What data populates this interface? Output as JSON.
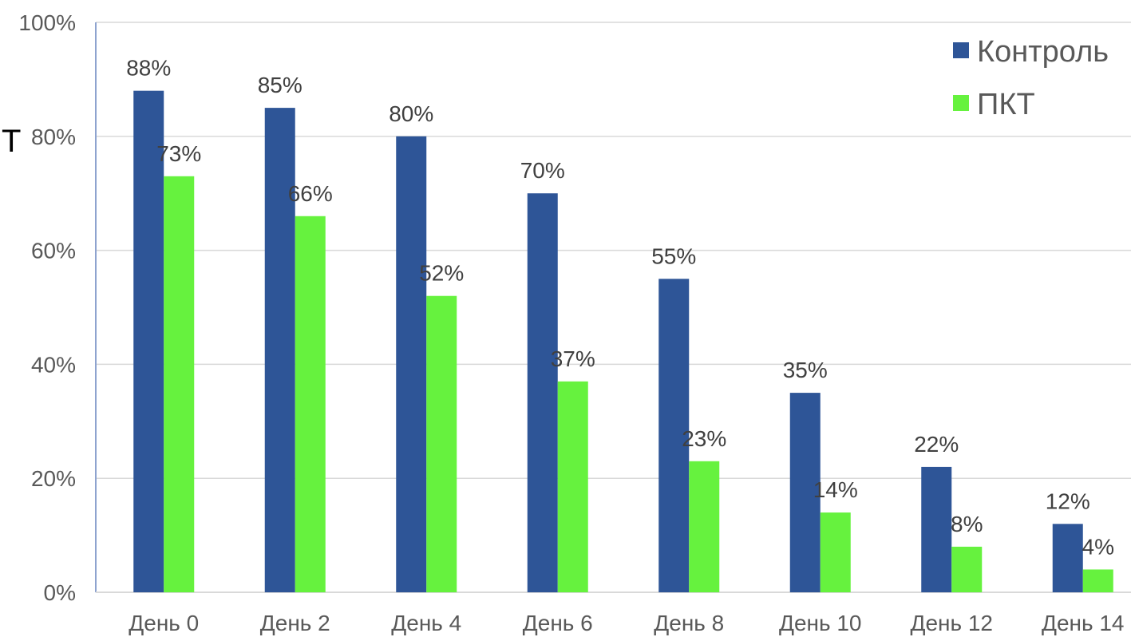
{
  "chart_data": {
    "type": "bar",
    "ylabel": "Т",
    "categories": [
      "День 0",
      "День 2",
      "День 4",
      "День 6",
      "День 8",
      "День 10",
      "День 12",
      "День 14"
    ],
    "series": [
      {
        "name": "Контроль",
        "color": "#2E5597",
        "values": [
          88,
          85,
          80,
          70,
          55,
          35,
          22,
          12
        ],
        "labels": [
          "88%",
          "85%",
          "80%",
          "70%",
          "55%",
          "35%",
          "22%",
          "12%"
        ]
      },
      {
        "name": "ПКТ",
        "color": "#66F23E",
        "values": [
          73,
          66,
          52,
          37,
          23,
          14,
          8,
          4
        ],
        "labels": [
          "73%",
          "66%",
          "52%",
          "37%",
          "23%",
          "14%",
          "8%",
          "4%"
        ]
      }
    ],
    "ylim": [
      0,
      100
    ],
    "yticks": [
      {
        "value": 0,
        "label": "0%"
      },
      {
        "value": 20,
        "label": "20%"
      },
      {
        "value": 40,
        "label": "40%"
      },
      {
        "value": 60,
        "label": "60%"
      },
      {
        "value": 80,
        "label": "80%"
      },
      {
        "value": 100,
        "label": "100%"
      }
    ],
    "grid": true,
    "legend_position": "top-right"
  }
}
